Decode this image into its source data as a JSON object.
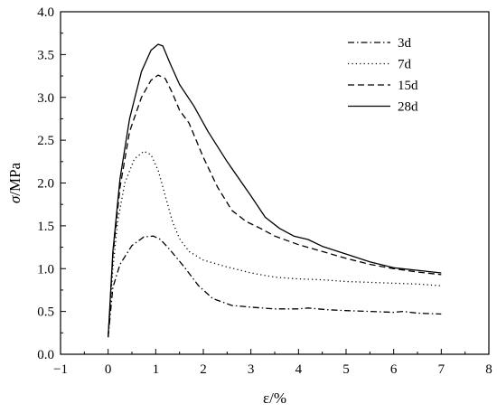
{
  "chart_data": {
    "type": "line",
    "title": "",
    "xlabel": "ε/%",
    "ylabel_symbol": "σ",
    "ylabel_unit": "/MPa",
    "xlim": [
      -1,
      8
    ],
    "ylim": [
      0.0,
      4.0
    ],
    "x_ticks": [
      -1,
      0,
      1,
      2,
      3,
      4,
      5,
      6,
      7,
      8
    ],
    "y_ticks": [
      0.0,
      0.5,
      1.0,
      1.5,
      2.0,
      2.5,
      3.0,
      3.5,
      4.0
    ],
    "x_tick_labels": [
      "−1",
      "0",
      "1",
      "2",
      "3",
      "4",
      "5",
      "6",
      "7",
      "8"
    ],
    "y_tick_labels": [
      "0.0",
      "0.5",
      "1.0",
      "1.5",
      "2.0",
      "2.5",
      "3.0",
      "3.5",
      "4.0"
    ],
    "grid": false,
    "legend_position": "top-right",
    "series": [
      {
        "name": "3d",
        "dash": "dash-dot",
        "points": [
          [
            0,
            0.2
          ],
          [
            0.1,
            0.78
          ],
          [
            0.25,
            1.05
          ],
          [
            0.5,
            1.27
          ],
          [
            0.75,
            1.37
          ],
          [
            0.95,
            1.38
          ],
          [
            1.1,
            1.34
          ],
          [
            1.3,
            1.22
          ],
          [
            1.6,
            1.02
          ],
          [
            1.9,
            0.8
          ],
          [
            2.2,
            0.65
          ],
          [
            2.6,
            0.57
          ],
          [
            3.0,
            0.55
          ],
          [
            3.5,
            0.53
          ],
          [
            4.0,
            0.53
          ],
          [
            4.2,
            0.54
          ],
          [
            4.6,
            0.52
          ],
          [
            5.0,
            0.51
          ],
          [
            5.5,
            0.5
          ],
          [
            6.0,
            0.49
          ],
          [
            6.2,
            0.5
          ],
          [
            6.5,
            0.48
          ],
          [
            7.0,
            0.47
          ]
        ]
      },
      {
        "name": "7d",
        "dash": "dotted",
        "points": [
          [
            0,
            0.2
          ],
          [
            0.1,
            1.0
          ],
          [
            0.2,
            1.55
          ],
          [
            0.35,
            2.0
          ],
          [
            0.55,
            2.28
          ],
          [
            0.75,
            2.37
          ],
          [
            0.9,
            2.33
          ],
          [
            1.05,
            2.15
          ],
          [
            1.2,
            1.85
          ],
          [
            1.35,
            1.55
          ],
          [
            1.5,
            1.35
          ],
          [
            1.7,
            1.2
          ],
          [
            2.0,
            1.1
          ],
          [
            2.5,
            1.02
          ],
          [
            3.0,
            0.95
          ],
          [
            3.5,
            0.9
          ],
          [
            4.0,
            0.88
          ],
          [
            4.5,
            0.87
          ],
          [
            5.0,
            0.85
          ],
          [
            5.5,
            0.84
          ],
          [
            6.0,
            0.83
          ],
          [
            6.5,
            0.82
          ],
          [
            7.0,
            0.8
          ]
        ]
      },
      {
        "name": "15d",
        "dash": "dashed",
        "points": [
          [
            0,
            0.2
          ],
          [
            0.1,
            1.15
          ],
          [
            0.25,
            1.95
          ],
          [
            0.45,
            2.6
          ],
          [
            0.7,
            3.0
          ],
          [
            0.9,
            3.2
          ],
          [
            1.05,
            3.26
          ],
          [
            1.2,
            3.22
          ],
          [
            1.35,
            3.05
          ],
          [
            1.5,
            2.85
          ],
          [
            1.7,
            2.7
          ],
          [
            2.0,
            2.3
          ],
          [
            2.3,
            1.95
          ],
          [
            2.6,
            1.68
          ],
          [
            2.9,
            1.55
          ],
          [
            3.2,
            1.47
          ],
          [
            3.5,
            1.38
          ],
          [
            4.0,
            1.28
          ],
          [
            4.5,
            1.2
          ],
          [
            5.0,
            1.12
          ],
          [
            5.5,
            1.05
          ],
          [
            6.0,
            1.0
          ],
          [
            6.5,
            0.96
          ],
          [
            7.0,
            0.93
          ]
        ]
      },
      {
        "name": "28d",
        "dash": "solid",
        "points": [
          [
            0,
            0.2
          ],
          [
            0.1,
            1.2
          ],
          [
            0.25,
            2.05
          ],
          [
            0.45,
            2.75
          ],
          [
            0.7,
            3.3
          ],
          [
            0.9,
            3.55
          ],
          [
            1.05,
            3.62
          ],
          [
            1.15,
            3.6
          ],
          [
            1.3,
            3.4
          ],
          [
            1.5,
            3.15
          ],
          [
            1.8,
            2.9
          ],
          [
            2.1,
            2.6
          ],
          [
            2.5,
            2.25
          ],
          [
            3.0,
            1.85
          ],
          [
            3.3,
            1.6
          ],
          [
            3.6,
            1.47
          ],
          [
            3.9,
            1.38
          ],
          [
            4.2,
            1.34
          ],
          [
            4.5,
            1.26
          ],
          [
            5.0,
            1.17
          ],
          [
            5.5,
            1.08
          ],
          [
            6.0,
            1.01
          ],
          [
            6.5,
            0.98
          ],
          [
            7.0,
            0.95
          ]
        ]
      }
    ]
  }
}
